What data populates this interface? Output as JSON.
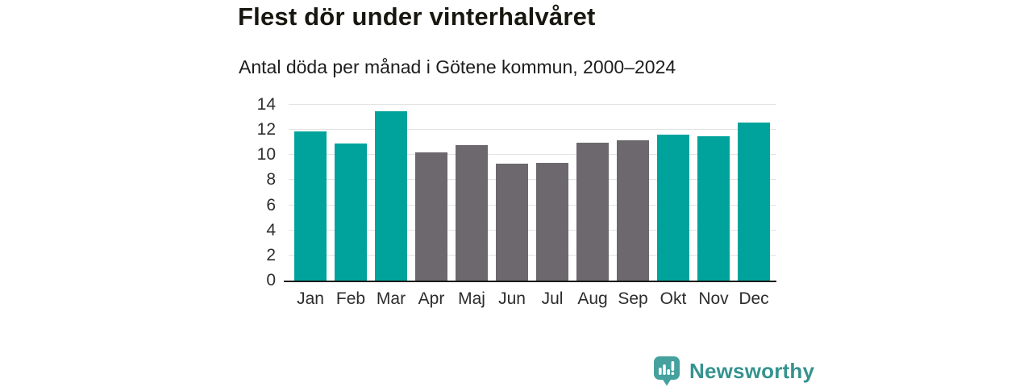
{
  "header": {
    "title": "Flest dör under vinterhalvåret",
    "subtitle": "Antal döda per månad i Götene kommun, 2000–2024"
  },
  "chart_data": {
    "type": "bar",
    "title": "Flest dör under vinterhalvåret",
    "subtitle": "Antal döda per månad i Götene kommun, 2000–2024",
    "categories": [
      "Jan",
      "Feb",
      "Mar",
      "Apr",
      "Maj",
      "Jun",
      "Jul",
      "Aug",
      "Sep",
      "Okt",
      "Nov",
      "Dec"
    ],
    "values": [
      11.9,
      10.9,
      13.5,
      10.2,
      10.8,
      9.3,
      9.4,
      11.0,
      11.2,
      11.6,
      11.5,
      12.6
    ],
    "bar_colors": [
      "winter",
      "winter",
      "winter",
      "summer",
      "summer",
      "summer",
      "summer",
      "summer",
      "summer",
      "winter",
      "winter",
      "winter"
    ],
    "palette": {
      "winter": "#00A39B",
      "summer": "#6C686D"
    },
    "xlabel": "",
    "ylabel": "",
    "ylim": [
      0,
      14
    ],
    "yticks": [
      0,
      2,
      4,
      6,
      8,
      10,
      12,
      14
    ],
    "grid": true,
    "legend_position": "none",
    "gridline_color": "#E3E3E3",
    "axis_line_color": "#1B1B1B",
    "tick_label_color": "#2E2E2E"
  },
  "footer": {
    "brand": "Newsworthy",
    "brand_color": "#35938F",
    "logo_icon": "newsworthy-speech-bubble-bar-chart-icon",
    "logo_color": "#44A19E"
  }
}
